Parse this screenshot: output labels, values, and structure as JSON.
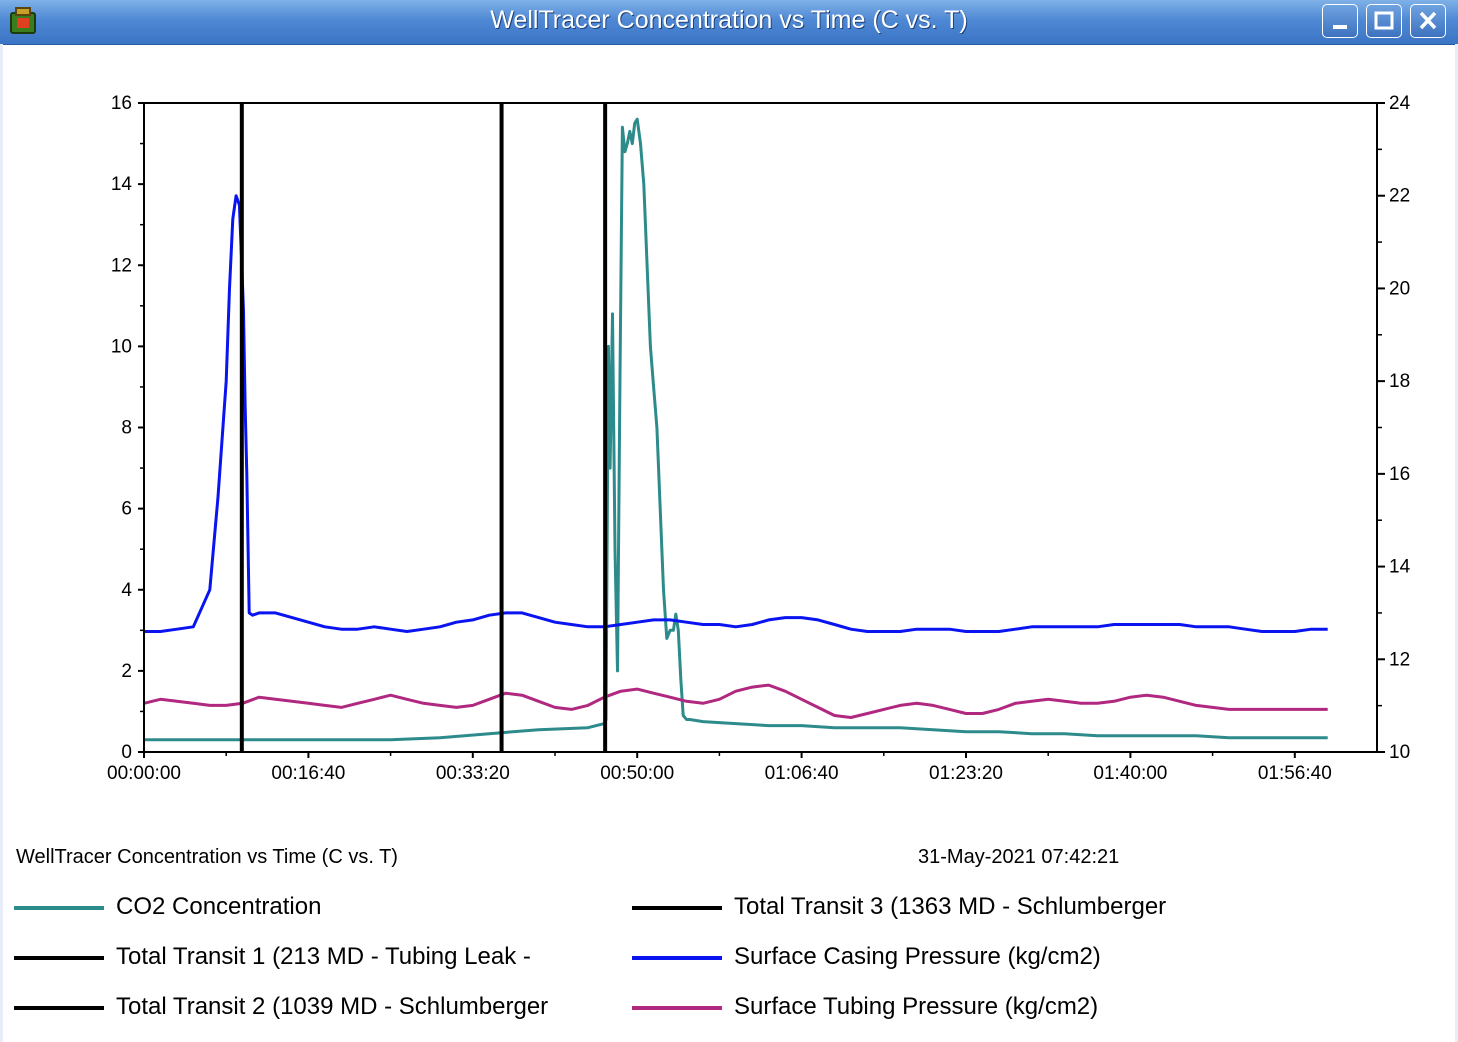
{
  "window": {
    "title": "WellTracer Concentration vs Time (C vs. T)",
    "controls": {
      "minimize": "minimize",
      "maximize": "maximize",
      "close": "close"
    }
  },
  "footer": {
    "title": "WellTracer Concentration vs Time (C vs. T)",
    "date": "31-May-2021 07:42:21"
  },
  "colors": {
    "titlebar": "#3a74c4",
    "co2": "#2e8b8b",
    "transit": "#000000",
    "casing": "#0a14f0",
    "tubing": "#b0287f"
  },
  "chart_data": {
    "type": "line",
    "x_unit": "hh:mm:ss",
    "x_ticks": [
      "00:00:00",
      "00:16:40",
      "00:33:20",
      "00:50:00",
      "01:06:40",
      "01:23:20",
      "01:40:00",
      "01:56:40"
    ],
    "x_tick_seconds": [
      0,
      1000,
      2000,
      3000,
      4000,
      5000,
      6000,
      7000
    ],
    "xlim_seconds": [
      0,
      7500
    ],
    "y_left_ticks": [
      "0",
      "2",
      "4",
      "6",
      "8",
      "10",
      "12",
      "14",
      "16"
    ],
    "ylim_left": [
      0,
      16
    ],
    "y_right_ticks": [
      "10",
      "12",
      "14",
      "16",
      "18",
      "20",
      "22",
      "24"
    ],
    "ylim_right": [
      10,
      24
    ],
    "legend_position": "bottom",
    "legend": [
      {
        "name": "CO2 Concentration",
        "color": "#2e8b8b"
      },
      {
        "name": "Total Transit 3 (1363 MD - Schlumberger",
        "color": "#000000"
      },
      {
        "name": "Total Transit 1 (213 MD - Tubing Leak -",
        "color": "#000000"
      },
      {
        "name": "Surface Casing Pressure (kg/cm2)",
        "color": "#0a14f0"
      },
      {
        "name": "Total Transit 2 (1039 MD - Schlumberger",
        "color": "#000000"
      },
      {
        "name": "Surface Tubing Pressure (kg/cm2)",
        "color": "#b0287f"
      }
    ],
    "vertical_markers": [
      {
        "name": "Total Transit 1 (213 MD - Tubing Leak -",
        "x_seconds": 595
      },
      {
        "name": "Total Transit 2 (1039 MD - Schlumberger",
        "x_seconds": 2175
      },
      {
        "name": "Total Transit 3 (1363 MD - Schlumberger",
        "x_seconds": 2805
      }
    ],
    "series": [
      {
        "name": "CO2 Concentration",
        "axis": "left",
        "color": "#2e8b8b",
        "x_seconds": [
          0,
          300,
          600,
          900,
          1200,
          1500,
          1800,
          2100,
          2400,
          2700,
          2800,
          2810,
          2825,
          2835,
          2850,
          2865,
          2880,
          2895,
          2910,
          2925,
          2940,
          2955,
          2970,
          2985,
          3000,
          3020,
          3040,
          3060,
          3080,
          3100,
          3120,
          3140,
          3160,
          3180,
          3200,
          3220,
          3235,
          3250,
          3265,
          3280,
          3290,
          3300,
          3320,
          3400,
          3600,
          3800,
          4000,
          4200,
          4400,
          4600,
          4800,
          5000,
          5200,
          5400,
          5600,
          5800,
          6000,
          6200,
          6400,
          6600,
          6800,
          7000,
          7200
        ],
        "values": [
          0.3,
          0.3,
          0.3,
          0.3,
          0.3,
          0.3,
          0.35,
          0.45,
          0.55,
          0.6,
          0.7,
          0.8,
          10.0,
          7.0,
          10.8,
          5.0,
          2.0,
          9.0,
          15.4,
          14.8,
          15.0,
          15.3,
          15.0,
          15.5,
          15.6,
          15.0,
          14.0,
          12.0,
          10.0,
          9.0,
          8.0,
          6.0,
          4.0,
          2.8,
          3.0,
          3.0,
          3.4,
          3.0,
          1.8,
          0.9,
          0.85,
          0.8,
          0.8,
          0.75,
          0.7,
          0.65,
          0.65,
          0.6,
          0.6,
          0.6,
          0.55,
          0.5,
          0.5,
          0.45,
          0.45,
          0.4,
          0.4,
          0.4,
          0.4,
          0.35,
          0.35,
          0.35,
          0.35
        ]
      },
      {
        "name": "Surface Casing Pressure (kg/cm2)",
        "axis": "right",
        "color": "#0a14f0",
        "x_seconds": [
          0,
          100,
          200,
          300,
          400,
          450,
          500,
          520,
          540,
          560,
          580,
          595,
          605,
          615,
          625,
          640,
          660,
          700,
          800,
          900,
          1000,
          1100,
          1200,
          1300,
          1400,
          1500,
          1600,
          1700,
          1800,
          1900,
          2000,
          2100,
          2200,
          2300,
          2400,
          2500,
          2600,
          2700,
          2800,
          2900,
          3000,
          3100,
          3200,
          3300,
          3400,
          3500,
          3600,
          3700,
          3800,
          3900,
          4000,
          4100,
          4200,
          4300,
          4400,
          4500,
          4600,
          4700,
          4800,
          4900,
          5000,
          5100,
          5200,
          5300,
          5400,
          5500,
          5600,
          5700,
          5800,
          5900,
          6000,
          6100,
          6200,
          6300,
          6400,
          6500,
          6600,
          6700,
          6800,
          6900,
          7000,
          7100,
          7200
        ],
        "values": [
          12.6,
          12.6,
          12.65,
          12.7,
          13.5,
          15.5,
          18.0,
          20.0,
          21.5,
          22.0,
          21.8,
          20.5,
          19.5,
          17.5,
          16.0,
          13.0,
          12.95,
          13.0,
          13.0,
          12.9,
          12.8,
          12.7,
          12.65,
          12.65,
          12.7,
          12.65,
          12.6,
          12.65,
          12.7,
          12.8,
          12.85,
          12.95,
          13.0,
          13.0,
          12.9,
          12.8,
          12.75,
          12.7,
          12.7,
          12.75,
          12.8,
          12.85,
          12.85,
          12.8,
          12.75,
          12.75,
          12.7,
          12.75,
          12.85,
          12.9,
          12.9,
          12.85,
          12.75,
          12.65,
          12.6,
          12.6,
          12.6,
          12.65,
          12.65,
          12.65,
          12.6,
          12.6,
          12.6,
          12.65,
          12.7,
          12.7,
          12.7,
          12.7,
          12.7,
          12.75,
          12.75,
          12.75,
          12.75,
          12.75,
          12.7,
          12.7,
          12.7,
          12.65,
          12.6,
          12.6,
          12.6,
          12.65,
          12.65
        ]
      },
      {
        "name": "Surface Tubing Pressure (kg/cm2)",
        "axis": "left",
        "color": "#b0287f",
        "x_seconds": [
          0,
          100,
          200,
          300,
          400,
          500,
          600,
          700,
          800,
          900,
          1000,
          1100,
          1200,
          1300,
          1400,
          1500,
          1600,
          1700,
          1800,
          1900,
          2000,
          2100,
          2200,
          2300,
          2400,
          2500,
          2600,
          2700,
          2800,
          2900,
          3000,
          3100,
          3200,
          3300,
          3400,
          3500,
          3600,
          3700,
          3800,
          3900,
          4000,
          4100,
          4200,
          4300,
          4400,
          4500,
          4600,
          4700,
          4800,
          4900,
          5000,
          5100,
          5200,
          5300,
          5400,
          5500,
          5600,
          5700,
          5800,
          5900,
          6000,
          6100,
          6200,
          6300,
          6400,
          6500,
          6600,
          6700,
          6800,
          6900,
          7000,
          7100,
          7200
        ],
        "values": [
          1.2,
          1.3,
          1.25,
          1.2,
          1.15,
          1.15,
          1.2,
          1.35,
          1.3,
          1.25,
          1.2,
          1.15,
          1.1,
          1.2,
          1.3,
          1.4,
          1.3,
          1.2,
          1.15,
          1.1,
          1.15,
          1.3,
          1.45,
          1.4,
          1.25,
          1.1,
          1.05,
          1.15,
          1.35,
          1.5,
          1.55,
          1.45,
          1.35,
          1.25,
          1.2,
          1.3,
          1.5,
          1.6,
          1.65,
          1.5,
          1.3,
          1.1,
          0.9,
          0.85,
          0.95,
          1.05,
          1.15,
          1.2,
          1.15,
          1.05,
          0.95,
          0.95,
          1.05,
          1.2,
          1.25,
          1.3,
          1.25,
          1.2,
          1.2,
          1.25,
          1.35,
          1.4,
          1.35,
          1.25,
          1.15,
          1.1,
          1.05,
          1.05,
          1.05,
          1.05,
          1.05,
          1.05,
          1.05
        ]
      }
    ]
  }
}
